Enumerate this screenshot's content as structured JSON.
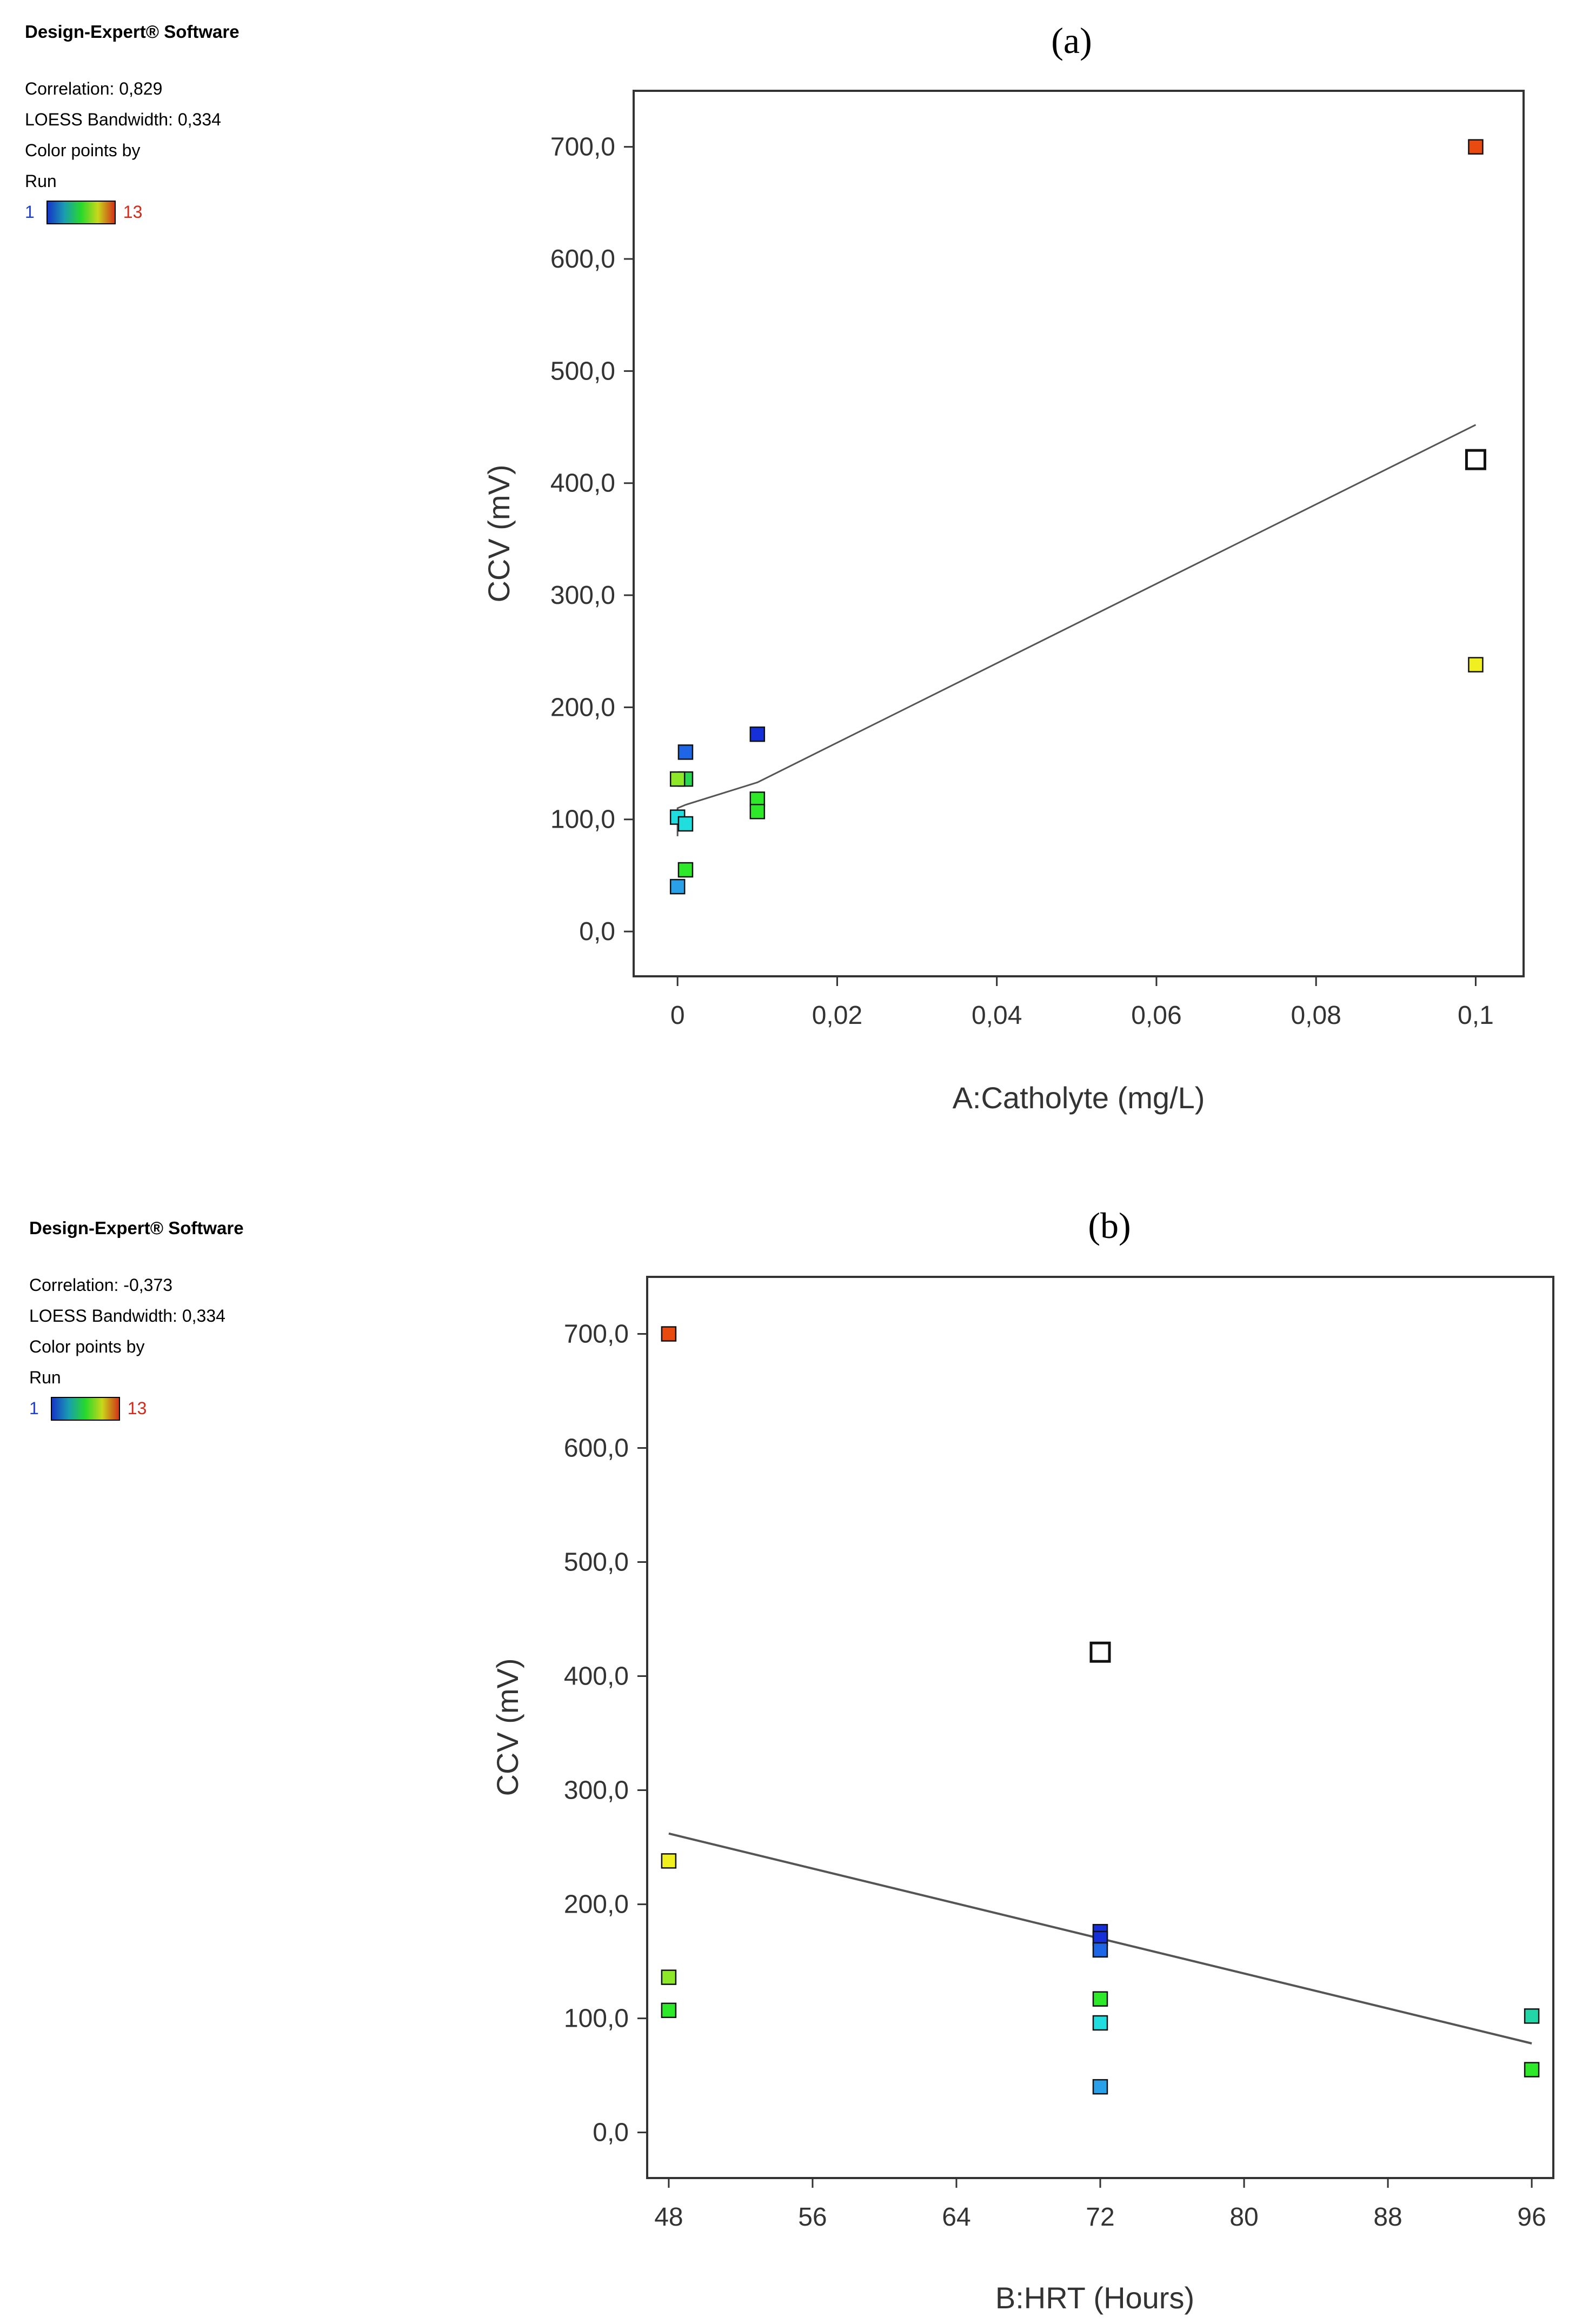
{
  "software_title": "Design-Expert® Software",
  "colorbar": {
    "low": "1",
    "high": "13"
  },
  "colors": {
    "run_1": "#1530d8",
    "run_2": "#1e66e6",
    "run_3": "#2aa0e8",
    "run_4": "#20dede",
    "run_5": "#22d6a8",
    "run_6": "#27d850",
    "run_7": "#2ee82a",
    "run_8": "#8ee82a",
    "run_9": "#f0f020",
    "run_10": "#f0a020",
    "run_11": "#e84a10",
    "run_12": "#ffffff",
    "line": "#555555",
    "axis": "#333333"
  },
  "chart_data": [
    {
      "type": "scatter",
      "panel_label": "(a)",
      "correlation": "Correlation: 0,829",
      "bandwidth": "LOESS Bandwidth: 0,334",
      "color_by": "Color points by",
      "color_var": "Run",
      "xlabel": "A:Catholyte (mg/L)",
      "ylabel": "CCV (mV)",
      "xlim": [
        -0.0055,
        0.106
      ],
      "ylim": [
        -40,
        750
      ],
      "xticks": [
        0,
        0.02,
        0.04,
        0.06,
        0.08,
        0.1
      ],
      "xtick_labels": [
        "0",
        "0,02",
        "0,04",
        "0,06",
        "0,08",
        "0,1"
      ],
      "yticks": [
        0,
        100,
        200,
        300,
        400,
        500,
        600,
        700
      ],
      "ytick_labels": [
        "0,0",
        "100,0",
        "200,0",
        "300,0",
        "400,0",
        "500,0",
        "600,0",
        "700,0"
      ],
      "points": [
        {
          "x": 0.1,
          "y": 700,
          "color": "run_11"
        },
        {
          "x": 0.1,
          "y": 420,
          "color": "run_10"
        },
        {
          "x": 0.1,
          "y": 421,
          "color": "run_12"
        },
        {
          "x": 0.1,
          "y": 238,
          "color": "run_9"
        },
        {
          "x": 0.01,
          "y": 176,
          "color": "run_1"
        },
        {
          "x": 0.01,
          "y": 118,
          "color": "run_7"
        },
        {
          "x": 0.01,
          "y": 107,
          "color": "run_7"
        },
        {
          "x": 0.001,
          "y": 160,
          "color": "run_2"
        },
        {
          "x": 0.001,
          "y": 136,
          "color": "run_6"
        },
        {
          "x": 0.0,
          "y": 136,
          "color": "run_8"
        },
        {
          "x": 0.0,
          "y": 102,
          "color": "run_4"
        },
        {
          "x": 0.001,
          "y": 96,
          "color": "run_4"
        },
        {
          "x": 0.001,
          "y": 55,
          "color": "run_7"
        },
        {
          "x": 0.0,
          "y": 40,
          "color": "run_3"
        }
      ],
      "fit_line": [
        {
          "x": 0.0,
          "y": 85
        },
        {
          "x": 0.0,
          "y": 110
        },
        {
          "x": 0.001,
          "y": 113
        },
        {
          "x": 0.01,
          "y": 133
        },
        {
          "x": 0.1,
          "y": 452
        }
      ]
    },
    {
      "type": "scatter",
      "panel_label": "(b)",
      "correlation": "Correlation: -0,373",
      "bandwidth": "LOESS Bandwidth: 0,334",
      "color_by": "Color points by",
      "color_var": "Run",
      "xlabel": "B:HRT (Hours)",
      "ylabel": "CCV (mV)",
      "xlim": [
        46.8,
        97.2
      ],
      "ylim": [
        -40,
        750
      ],
      "xticks": [
        48,
        56,
        64,
        72,
        80,
        88,
        96
      ],
      "xtick_labels": [
        "48",
        "56",
        "64",
        "72",
        "80",
        "88",
        "96"
      ],
      "yticks": [
        0,
        100,
        200,
        300,
        400,
        500,
        600,
        700
      ],
      "ytick_labels": [
        "0,0",
        "100,0",
        "200,0",
        "300,0",
        "400,0",
        "500,0",
        "600,0",
        "700,0"
      ],
      "points": [
        {
          "x": 48,
          "y": 700,
          "color": "run_11"
        },
        {
          "x": 48,
          "y": 238,
          "color": "run_9"
        },
        {
          "x": 48,
          "y": 136,
          "color": "run_8"
        },
        {
          "x": 48,
          "y": 107,
          "color": "run_7"
        },
        {
          "x": 72,
          "y": 420,
          "color": "run_10"
        },
        {
          "x": 72,
          "y": 421,
          "color": "run_12"
        },
        {
          "x": 72,
          "y": 176,
          "color": "run_1"
        },
        {
          "x": 72,
          "y": 170,
          "color": "run_1"
        },
        {
          "x": 72,
          "y": 160,
          "color": "run_2"
        },
        {
          "x": 72,
          "y": 117,
          "color": "run_7"
        },
        {
          "x": 72,
          "y": 96,
          "color": "run_4"
        },
        {
          "x": 72,
          "y": 40,
          "color": "run_3"
        },
        {
          "x": 96,
          "y": 102,
          "color": "run_5"
        },
        {
          "x": 96,
          "y": 55,
          "color": "run_7"
        }
      ],
      "fit_line": [
        {
          "x": 48,
          "y": 262
        },
        {
          "x": 96,
          "y": 78
        }
      ]
    }
  ]
}
